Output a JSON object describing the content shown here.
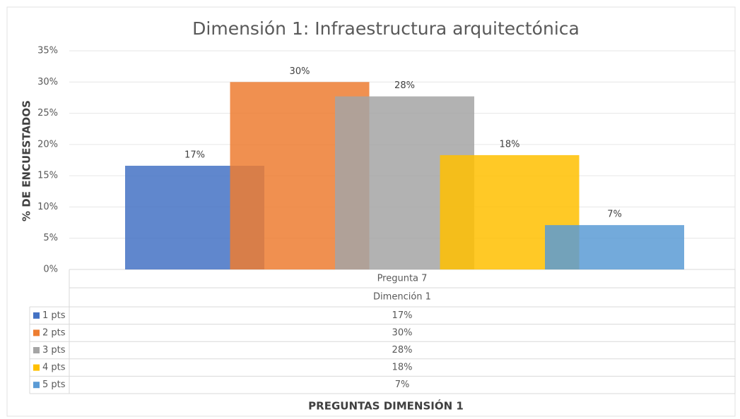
{
  "chart_data": {
    "type": "bar",
    "title": "Dimensión 1: Infraestructura arquitectónica",
    "y_label": "% DE ENCUESTADOS",
    "x_label": "PREGUNTAS DIMENSIÓN 1",
    "categories": [
      "Pregunta 7"
    ],
    "category_group": "Dimención 1",
    "series": [
      {
        "name": "1 pts",
        "color": "#4472c4",
        "values": [
          16.6
        ],
        "value_labels": [
          "17%"
        ]
      },
      {
        "name": "2 pts",
        "color": "#ed7d31",
        "values": [
          30
        ],
        "value_labels": [
          "30%"
        ]
      },
      {
        "name": "3 pts",
        "color": "#a5a5a5",
        "values": [
          27.7
        ],
        "value_labels": [
          "28%"
        ]
      },
      {
        "name": "4 pts",
        "color": "#ffc000",
        "values": [
          18.3
        ],
        "value_labels": [
          "18%"
        ]
      },
      {
        "name": "5 pts",
        "color": "#5b9bd5",
        "values": [
          7.1
        ],
        "value_labels": [
          "7%"
        ]
      }
    ],
    "ylim": [
      0,
      35
    ],
    "yticks": [
      {
        "value": 0,
        "label": "0%"
      },
      {
        "value": 5,
        "label": "5%"
      },
      {
        "value": 10,
        "label": "10%"
      },
      {
        "value": 15,
        "label": "15%"
      },
      {
        "value": 20,
        "label": "20%"
      },
      {
        "value": 25,
        "label": "25%"
      },
      {
        "value": 30,
        "label": "30%"
      },
      {
        "value": 35,
        "label": "35%"
      }
    ],
    "grid": true,
    "legend": "table"
  }
}
